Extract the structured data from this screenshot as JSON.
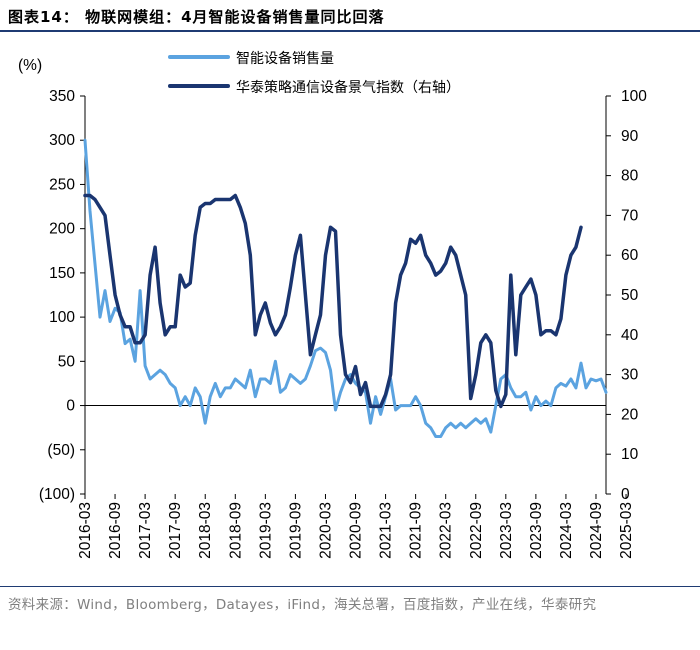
{
  "title": "图表14：  物联网模组：4月智能设备销售量同比回落",
  "source": "资料来源：Wind，Bloomberg，Datayes，iFind，海关总署，百度指数，产业在线，华泰研究",
  "chart_data": {
    "type": "line",
    "ylabel_left": "(%)",
    "y_left_lim": [
      -100,
      350
    ],
    "y_left_ticks": [
      350,
      300,
      250,
      200,
      150,
      100,
      50,
      0,
      -50,
      -100
    ],
    "y_left_tick_labels": [
      "350",
      "300",
      "250",
      "200",
      "150",
      "100",
      "50",
      "0",
      "(50)",
      "(100)"
    ],
    "y_right_lim": [
      0,
      100
    ],
    "y_right_ticks": [
      100,
      90,
      80,
      70,
      60,
      50,
      40,
      30,
      20,
      10,
      0
    ],
    "x_tick_labels": [
      "2016-03",
      "2016-09",
      "2017-03",
      "2017-09",
      "2018-03",
      "2018-09",
      "2019-03",
      "2019-09",
      "2020-03",
      "2020-09",
      "2021-03",
      "2021-09",
      "2022-03",
      "2022-09",
      "2023-03",
      "2023-09",
      "2024-03",
      "2024-09",
      "2025-03"
    ],
    "legend_position": "top-center",
    "series": [
      {
        "name": "智能设备销售量",
        "axis": "left",
        "color": "#5ba3e0",
        "start": "2016-03",
        "values": [
          300,
          220,
          160,
          100,
          130,
          95,
          110,
          105,
          70,
          75,
          50,
          130,
          45,
          30,
          35,
          40,
          35,
          25,
          20,
          0,
          10,
          0,
          20,
          10,
          -20,
          10,
          25,
          10,
          20,
          20,
          30,
          25,
          20,
          40,
          10,
          30,
          30,
          25,
          50,
          15,
          20,
          35,
          30,
          25,
          30,
          45,
          62,
          65,
          60,
          40,
          -5,
          15,
          30,
          35,
          25,
          20,
          15,
          -20,
          10,
          -10,
          10,
          30,
          -5,
          0,
          0,
          0,
          10,
          0,
          -20,
          -25,
          -35,
          -35,
          -25,
          -20,
          -25,
          -20,
          -25,
          -20,
          -15,
          -20,
          -15,
          -30,
          0,
          30,
          35,
          20,
          10,
          10,
          15,
          -5,
          10,
          0,
          5,
          0,
          20,
          25,
          22,
          30,
          20,
          48,
          20,
          30,
          28,
          30,
          15
        ]
      },
      {
        "name": "华泰策略通信设备景气指数（右轴）",
        "axis": "right",
        "color": "#1a3570",
        "start": "2016-03",
        "values": [
          75,
          75,
          74,
          72,
          70,
          60,
          50,
          45,
          42,
          42,
          38,
          38,
          40,
          55,
          62,
          48,
          40,
          42,
          42,
          55,
          52,
          53,
          65,
          72,
          73,
          73,
          74,
          74,
          74,
          74,
          75,
          72,
          68,
          60,
          40,
          45,
          48,
          43,
          40,
          42,
          45,
          52,
          60,
          65,
          50,
          35,
          40,
          45,
          60,
          67,
          66,
          40,
          30,
          28,
          32,
          25,
          28,
          22,
          22,
          22,
          25,
          30,
          48,
          55,
          58,
          64,
          63,
          65,
          60,
          58,
          55,
          56,
          58,
          62,
          60,
          55,
          50,
          24,
          30,
          38,
          40,
          38,
          26,
          22,
          25,
          55,
          35,
          50,
          52,
          54,
          50,
          40,
          41,
          41,
          40,
          44,
          55,
          60,
          62,
          67
        ]
      }
    ]
  }
}
